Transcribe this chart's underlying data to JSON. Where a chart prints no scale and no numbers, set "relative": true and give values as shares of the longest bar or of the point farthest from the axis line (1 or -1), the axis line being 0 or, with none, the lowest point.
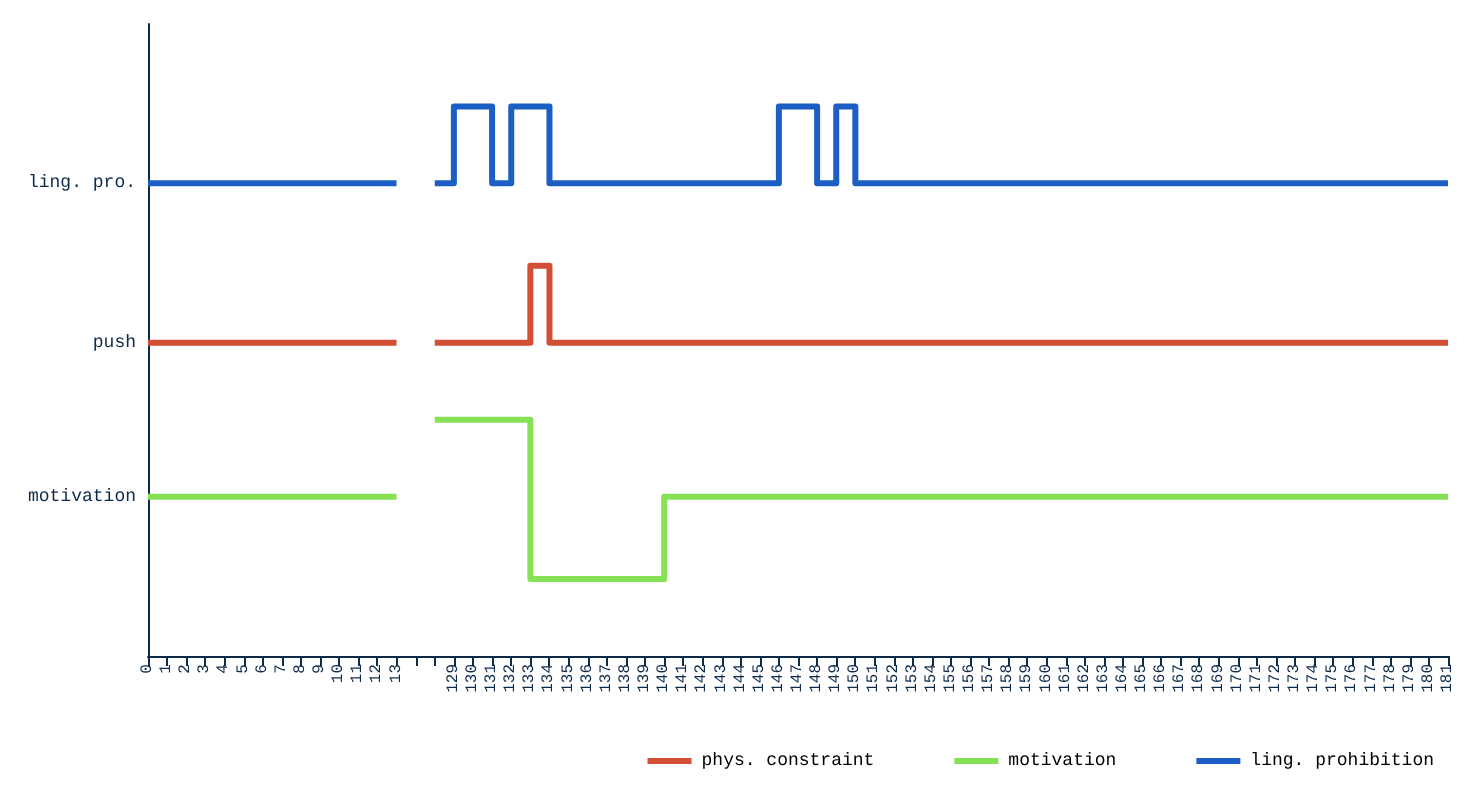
{
  "chart_data": {
    "type": "step",
    "relative": true,
    "categories": [
      "0",
      "1",
      "2",
      "3",
      "4",
      "5",
      "6",
      "7",
      "8",
      "9",
      "10",
      "11",
      "12",
      "13",
      null,
      null,
      "129",
      "130",
      "131",
      "132",
      "133",
      "134",
      "135",
      "136",
      "137",
      "138",
      "139",
      "140",
      "141",
      "142",
      "143",
      "144",
      "145",
      "146",
      "147",
      "148",
      "149",
      "150",
      "151",
      "152",
      "153",
      "154",
      "155",
      "156",
      "157",
      "158",
      "159",
      "160",
      "161",
      "162",
      "163",
      "164",
      "165",
      "166",
      "167",
      "168",
      "169",
      "170",
      "171",
      "172",
      "173",
      "174",
      "175",
      "176",
      "177",
      "178",
      "179",
      "180",
      "181"
    ],
    "series": [
      {
        "name": "phys. constraint",
        "color": "#d24f35",
        "values": [
          0.57,
          0.57,
          0.57,
          0.57,
          0.57,
          0.57,
          0.57,
          0.57,
          0.57,
          0.57,
          0.57,
          0.57,
          0.57,
          0.57,
          null,
          null,
          0.57,
          0.57,
          0.57,
          0.57,
          0.57,
          0.71,
          0.57,
          0.57,
          0.57,
          0.57,
          0.57,
          0.57,
          0.57,
          0.57,
          0.57,
          0.57,
          0.57,
          0.57,
          0.57,
          0.57,
          0.57,
          0.57,
          0.57,
          0.57,
          0.57,
          0.57,
          0.57,
          0.57,
          0.57,
          0.57,
          0.57,
          0.57,
          0.57,
          0.57,
          0.57,
          0.57,
          0.57,
          0.57,
          0.57,
          0.57,
          0.57,
          0.57,
          0.57,
          0.57,
          0.57,
          0.57,
          0.57,
          0.57,
          0.57,
          0.57,
          0.57,
          0.57,
          0.57
        ]
      },
      {
        "name": "motivation",
        "color": "#86e155",
        "values": [
          0.29,
          0.29,
          0.29,
          0.29,
          0.29,
          0.29,
          0.29,
          0.29,
          0.29,
          0.29,
          0.29,
          0.29,
          0.29,
          0.29,
          null,
          null,
          0.43,
          0.43,
          0.43,
          0.43,
          0.43,
          0.14,
          0.14,
          0.14,
          0.14,
          0.14,
          0.14,
          0.14,
          0.29,
          0.29,
          0.29,
          0.29,
          0.29,
          0.29,
          0.29,
          0.29,
          0.29,
          0.29,
          0.29,
          0.29,
          0.29,
          0.29,
          0.29,
          0.29,
          0.29,
          0.29,
          0.29,
          0.29,
          0.29,
          0.29,
          0.29,
          0.29,
          0.29,
          0.29,
          0.29,
          0.29,
          0.29,
          0.29,
          0.29,
          0.29,
          0.29,
          0.29,
          0.29,
          0.29,
          0.29,
          0.29,
          0.29,
          0.29,
          0.29
        ]
      },
      {
        "name": "ling. prohibition",
        "color": "#1b5ec4",
        "values": [
          0.86,
          0.86,
          0.86,
          0.86,
          0.86,
          0.86,
          0.86,
          0.86,
          0.86,
          0.86,
          0.86,
          0.86,
          0.86,
          0.86,
          null,
          null,
          0.86,
          1,
          1,
          0.86,
          1,
          1,
          0.86,
          0.86,
          0.86,
          0.86,
          0.86,
          0.86,
          0.86,
          0.86,
          0.86,
          0.86,
          0.86,
          0.86,
          1,
          1,
          0.86,
          1,
          0.86,
          0.86,
          0.86,
          0.86,
          0.86,
          0.86,
          0.86,
          0.86,
          0.86,
          0.86,
          0.86,
          0.86,
          0.86,
          0.86,
          0.86,
          0.86,
          0.86,
          0.86,
          0.86,
          0.86,
          0.86,
          0.86,
          0.86,
          0.86,
          0.86,
          0.86,
          0.86,
          0.86,
          0.86,
          0.86,
          0.86
        ]
      }
    ],
    "annotations": [
      "ling. pro.",
      "push",
      "motivation"
    ],
    "grid": false,
    "legend": "bottom right",
    "marker": "none",
    "line_style": "solid"
  }
}
